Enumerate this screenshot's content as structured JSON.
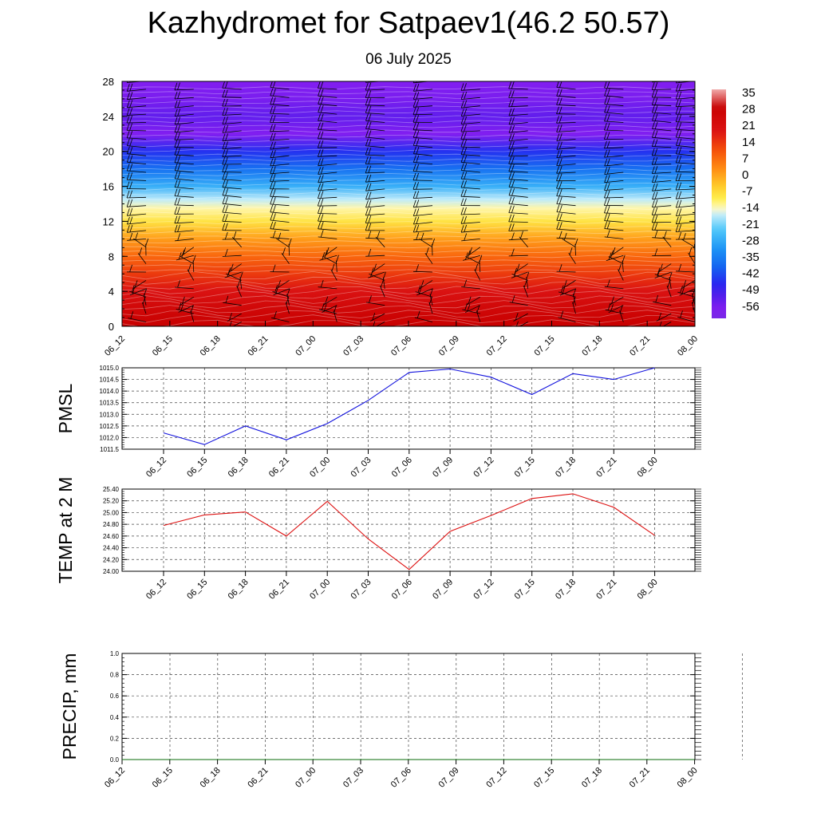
{
  "title": "Kazhydromet for Satpaev1(46.2 50.57)",
  "subtitle": "06 July 2025",
  "chart_data": [
    {
      "type": "heatmap",
      "name": "temperature-height-cross-section",
      "x_tick_labels": [
        "06_12",
        "06_15",
        "06_18",
        "06_21",
        "07_00",
        "07_03",
        "07_06",
        "07_09",
        "07_12",
        "07_15",
        "07_18",
        "07_21",
        "08_00"
      ],
      "y_ticks": [
        0,
        4,
        8,
        12,
        16,
        20,
        24,
        28
      ],
      "ylim": [
        0,
        28
      ],
      "colorbar": {
        "labels": [
          "35",
          "28",
          "21",
          "14",
          "7",
          "0",
          "-7",
          "-14",
          "-21",
          "-28",
          "-35",
          "-42",
          "-49",
          "-56"
        ],
        "range": [
          -60,
          38
        ]
      },
      "temperature_profile": {
        "heights": [
          0,
          2,
          4,
          6,
          8,
          10,
          12,
          13.5,
          14.5,
          16,
          18,
          20,
          22,
          24,
          26,
          28
        ],
        "values": [
          30,
          26,
          21,
          15,
          9,
          2,
          -7,
          -12,
          -16,
          -26,
          -36,
          -44,
          -56,
          -52,
          -55,
          -56
        ]
      },
      "wind_barbs": true
    },
    {
      "type": "line",
      "ylabel": "PMSL",
      "x": [
        "06_12",
        "06_15",
        "06_18",
        "06_21",
        "07_00",
        "07_03",
        "07_06",
        "07_09",
        "07_12",
        "07_15",
        "07_18",
        "07_21",
        "08_00"
      ],
      "y_ticks": [
        "1011.5",
        "1012.0",
        "1012.5",
        "1013.0",
        "1013.5",
        "1014.0",
        "1014.5",
        "1015.0"
      ],
      "ylim": [
        1011.5,
        1015.0
      ],
      "grid": true,
      "series": [
        {
          "values": [
            1012.2,
            1011.7,
            1012.5,
            1011.9,
            1012.6,
            1013.6,
            1014.8,
            1014.95,
            1014.6,
            1013.85,
            1014.75,
            1014.5,
            1015.0
          ],
          "color": "#1010dd"
        }
      ]
    },
    {
      "type": "line",
      "ylabel": "TEMP at 2 M",
      "x": [
        "06_12",
        "06_15",
        "06_18",
        "06_21",
        "07_00",
        "07_03",
        "07_06",
        "07_09",
        "07_12",
        "07_15",
        "07_18",
        "07_21",
        "08_00"
      ],
      "y_ticks": [
        "24.00",
        "24.20",
        "24.40",
        "24.60",
        "24.80",
        "25.00",
        "25.20",
        "25.40"
      ],
      "ylim": [
        24.0,
        25.4
      ],
      "grid": true,
      "series": [
        {
          "values": [
            24.78,
            24.96,
            25.01,
            24.6,
            25.19,
            24.55,
            24.03,
            24.68,
            24.95,
            25.24,
            25.32,
            25.09,
            24.61
          ],
          "color": "#dd1010"
        }
      ]
    },
    {
      "type": "line",
      "ylabel": "PRECIP, mm",
      "x_tick_labels": [
        "06_12",
        "06_15",
        "06_18",
        "06_21",
        "07_00",
        "07_03",
        "07_06",
        "07_09",
        "07_12",
        "07_15",
        "07_18",
        "07_21",
        "08_00"
      ],
      "y_ticks": [
        "0.0",
        "0.2",
        "0.4",
        "0.6",
        "0.8",
        "1.0"
      ],
      "ylim": [
        0,
        1.0
      ],
      "grid": true,
      "series": [
        {
          "values": [
            0,
            0,
            0,
            0,
            0,
            0,
            0,
            0,
            0,
            0,
            0,
            0,
            0
          ],
          "color": "#0a6b0a"
        }
      ]
    }
  ]
}
